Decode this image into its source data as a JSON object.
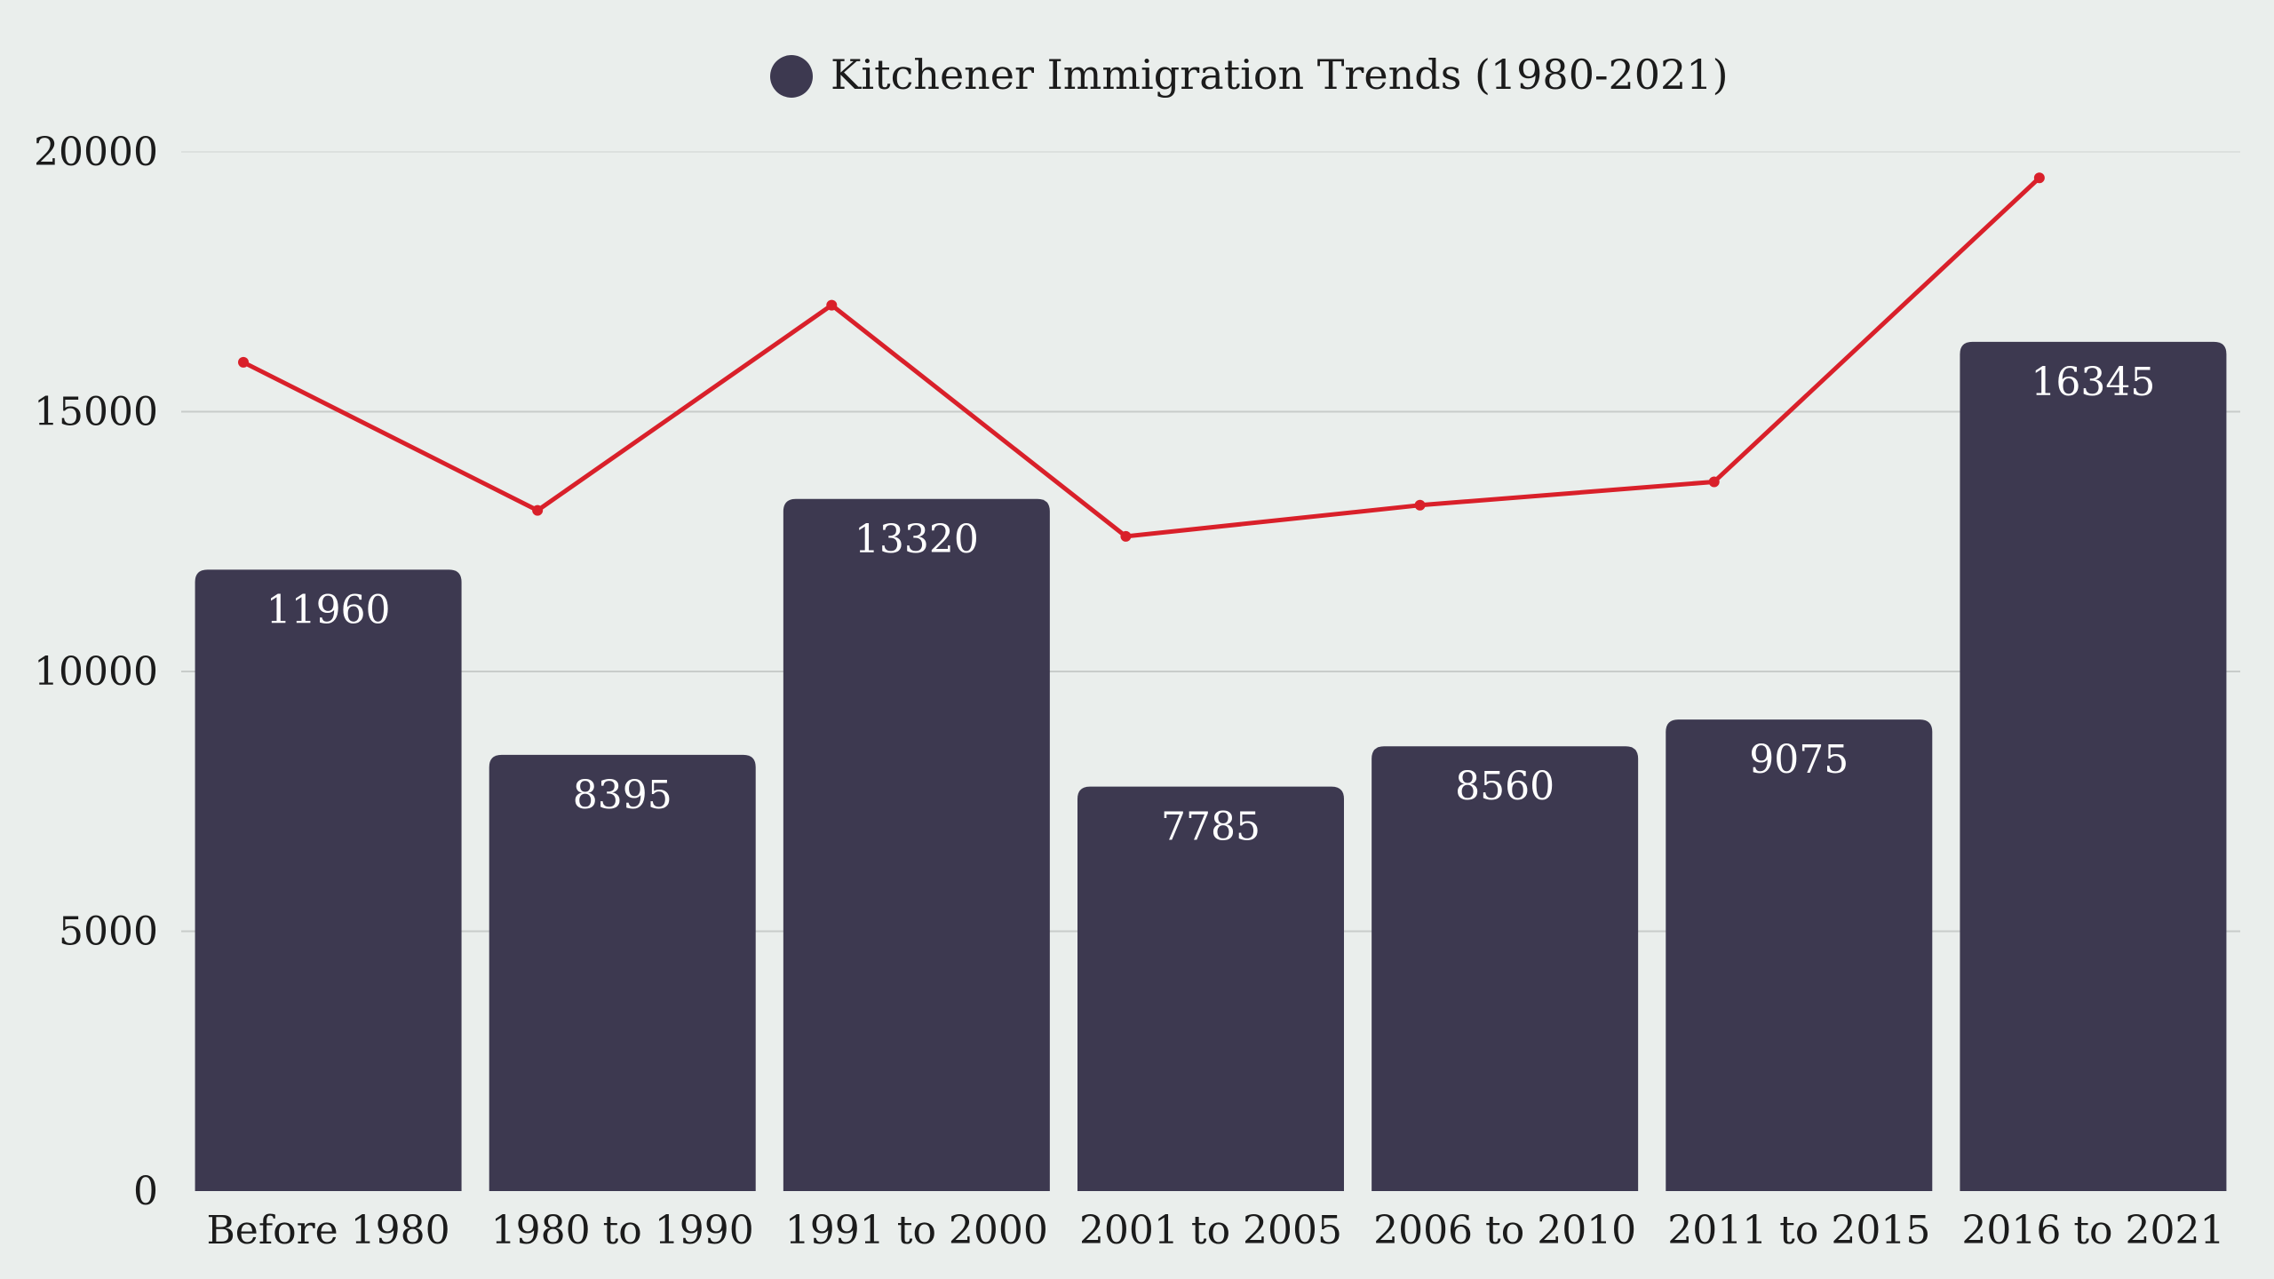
{
  "chart_data": {
    "type": "bar",
    "title": "",
    "categories": [
      "Before 1980",
      "1980 to 1990",
      "1991 to 2000",
      "2001 to 2005",
      "2006 to 2010",
      "2011 to 2015",
      "2016 to 2021"
    ],
    "series": [
      {
        "name": "Kitchener Immigration Trends (1980-2021)",
        "type": "bar",
        "values": [
          11960,
          8395,
          13320,
          7785,
          8560,
          9075,
          16345
        ],
        "color": "#3D3950"
      },
      {
        "type": "line",
        "values": [
          15950,
          13100,
          17050,
          12600,
          13200,
          13650,
          19500
        ],
        "color": "#D9202A"
      }
    ],
    "yticks": [
      "0",
      "5000",
      "10000",
      "15000",
      "20000"
    ],
    "ylim": [
      0,
      20000
    ],
    "grid": true,
    "legend": "top-center",
    "data_labels": "inside-top"
  }
}
